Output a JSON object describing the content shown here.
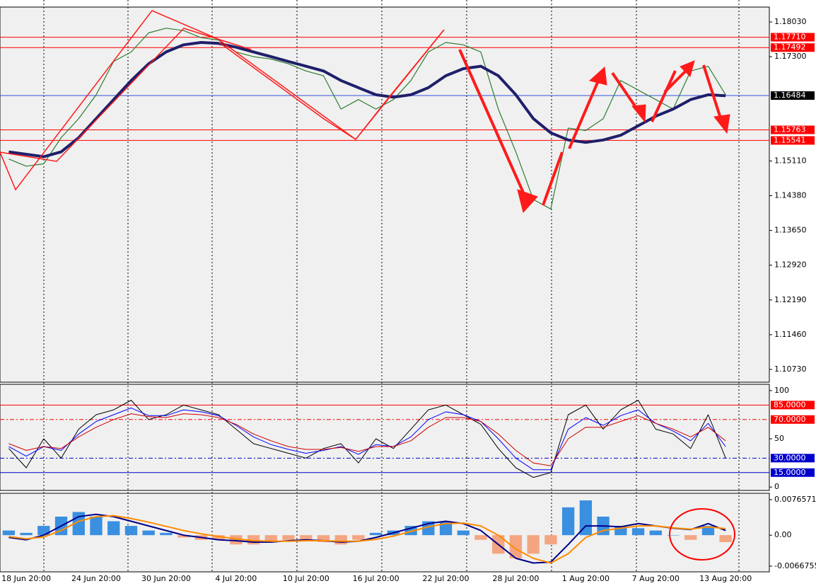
{
  "chart_data": [
    {
      "type": "line",
      "categories": [
        null,
        "18 Jun 20:00",
        null,
        null,
        null,
        "24 Jun 20:00",
        null,
        null,
        null,
        "30 Jun 20:00",
        null,
        null,
        null,
        "4 Jul 20:00",
        null,
        null,
        null,
        "10 Jul 20:00",
        null,
        null,
        null,
        "16 Jul 20:00",
        null,
        null,
        null,
        "22 Jul 20:00",
        null,
        null,
        null,
        "28 Jul 20:00",
        null,
        null,
        null,
        "1 Aug 20:00",
        null,
        null,
        null,
        "7 Aug 20:00",
        null,
        null,
        null,
        "13 Aug 20:00",
        null,
        null
      ],
      "ylim": [
        1.10462,
        1.18343
      ],
      "yticks": [
        {
          "value": 1.1803,
          "label": "1.18030"
        },
        {
          "value": 1.173,
          "label": "1.17300"
        },
        {
          "value": 1.1511,
          "label": "1.15110"
        },
        {
          "value": 1.1438,
          "label": "1.14380"
        },
        {
          "value": 1.1365,
          "label": "1.13650"
        },
        {
          "value": 1.1292,
          "label": "1.12920"
        },
        {
          "value": 1.1219,
          "label": "1.12190"
        },
        {
          "value": 1.1146,
          "label": "1.11460"
        },
        {
          "value": 1.1073,
          "label": "1.10730"
        }
      ],
      "levels": [
        {
          "value": 1.1771,
          "label": "1.17710",
          "color": "#ff0000",
          "dashed": false
        },
        {
          "value": 1.17492,
          "label": "1.17492",
          "color": "#ff0000",
          "dashed": false
        },
        {
          "value": 1.16484,
          "label": "1.16484",
          "color": "#3355dd",
          "dashed": false
        },
        {
          "value": 1.15763,
          "label": "1.15763",
          "color": "#ff0000",
          "dashed": false
        },
        {
          "value": 1.15541,
          "label": "1.15541",
          "color": "#ff0000",
          "dashed": false
        }
      ],
      "series": [
        {
          "color": "#2e7d32",
          "width": 1.2,
          "values": [
            1.1515,
            1.15,
            1.1505,
            1.156,
            1.16,
            1.165,
            1.172,
            1.174,
            1.178,
            1.179,
            1.1785,
            1.177,
            1.1765,
            1.174,
            1.173,
            1.1725,
            1.1715,
            1.17,
            1.169,
            1.162,
            1.164,
            1.162,
            1.164,
            1.168,
            1.174,
            1.176,
            1.1755,
            1.174,
            1.162,
            1.153,
            1.143,
            1.141,
            1.158,
            1.1575,
            1.16,
            1.168,
            1.166,
            1.164,
            1.162,
            1.17,
            1.171,
            1.165,
            null,
            null
          ]
        },
        {
          "color": "#1f1f6b",
          "width": 4,
          "values": [
            1.153,
            1.1525,
            1.152,
            1.153,
            1.156,
            1.16,
            1.164,
            1.168,
            1.1715,
            1.174,
            1.1755,
            1.176,
            1.1758,
            1.175,
            1.174,
            1.173,
            1.172,
            1.171,
            1.17,
            1.168,
            1.1665,
            1.165,
            1.1645,
            1.165,
            1.1665,
            1.169,
            1.1705,
            1.171,
            1.169,
            1.165,
            1.16,
            1.157,
            1.1555,
            1.155,
            1.1555,
            1.1565,
            1.1585,
            1.1605,
            1.162,
            1.164,
            1.165,
            1.1648,
            null,
            null
          ]
        }
      ]
    },
    {
      "type": "line",
      "ylim": [
        -3.5,
        106.5
      ],
      "yticks": [
        0,
        50,
        100
      ],
      "levels": [
        {
          "value": 85,
          "label": "85.0000",
          "color": "#ff0000",
          "dashed": false
        },
        {
          "value": 70,
          "label": "70.0000",
          "color": "#ff0000",
          "dashed": true
        },
        {
          "value": 30,
          "label": "30.0000",
          "color": "#0000cc",
          "dashed": true
        },
        {
          "value": 15,
          "label": "15.0000",
          "color": "#0000cc",
          "dashed": false
        }
      ],
      "series": [
        {
          "color": "#000000",
          "width": 1,
          "values": [
            40,
            20,
            50,
            30,
            60,
            75,
            80,
            90,
            70,
            75,
            85,
            80,
            75,
            60,
            45,
            40,
            35,
            30,
            40,
            45,
            25,
            50,
            40,
            60,
            80,
            85,
            75,
            65,
            40,
            20,
            10,
            15,
            75,
            85,
            60,
            80,
            90,
            60,
            55,
            40,
            75,
            30,
            null,
            null
          ]
        },
        {
          "color": "#0000ff",
          "width": 1,
          "values": [
            42,
            32,
            42,
            38,
            55,
            68,
            75,
            82,
            74,
            74,
            80,
            78,
            74,
            64,
            52,
            44,
            39,
            35,
            38,
            42,
            34,
            44,
            42,
            52,
            70,
            78,
            75,
            68,
            50,
            30,
            18,
            18,
            60,
            72,
            64,
            74,
            80,
            66,
            58,
            48,
            66,
            42,
            null,
            null
          ]
        },
        {
          "color": "#d00000",
          "width": 1,
          "values": [
            45,
            38,
            42,
            40,
            52,
            62,
            70,
            76,
            73,
            72,
            76,
            75,
            72,
            65,
            55,
            48,
            42,
            39,
            39,
            41,
            37,
            42,
            42,
            48,
            62,
            72,
            72,
            68,
            55,
            38,
            25,
            22,
            50,
            62,
            62,
            68,
            74,
            66,
            60,
            52,
            62,
            48,
            null,
            null
          ]
        }
      ]
    },
    {
      "type": "bar",
      "ylim": [
        -0.00791,
        0.00903
      ],
      "yticks": [
        {
          "value": 0.0076571,
          "label": "0.0076571"
        },
        {
          "value": 0,
          "label": "0.00"
        },
        {
          "value": -0.0066755,
          "label": "-0.0066755"
        }
      ],
      "levels": [],
      "series": [
        {
          "type": "bar",
          "color": "#3a8fe0",
          "negative_color": "#f4a582",
          "values": [
            0.001,
            0.0005,
            0.002,
            0.004,
            0.005,
            0.004,
            0.003,
            0.002,
            0.001,
            0.0005,
            -0.0005,
            -0.001,
            -0.001,
            -0.002,
            -0.002,
            -0.0015,
            -0.001,
            -0.001,
            -0.0015,
            -0.002,
            -0.001,
            0.0005,
            0.001,
            0.002,
            0.003,
            0.003,
            0.001,
            -0.001,
            -0.004,
            -0.005,
            -0.004,
            -0.002,
            0.006,
            0.0075,
            0.004,
            0.002,
            0.0015,
            0.001,
            0,
            -0.001,
            0.002,
            -0.0015,
            null,
            null
          ]
        },
        {
          "type": "line",
          "color": "#00008b",
          "width": 2,
          "values": [
            -0.0005,
            -0.001,
            0,
            0.002,
            0.004,
            0.0045,
            0.004,
            0.003,
            0.002,
            0.001,
            0,
            -0.0005,
            -0.001,
            -0.0012,
            -0.0015,
            -0.0015,
            -0.0012,
            -0.001,
            -0.0012,
            -0.0015,
            -0.0013,
            -0.0005,
            0.0005,
            0.0015,
            0.0025,
            0.003,
            0.0025,
            0.001,
            -0.002,
            -0.005,
            -0.006,
            -0.0058,
            -0.002,
            0.002,
            0.002,
            0.0018,
            0.0025,
            0.002,
            0.0015,
            0.0012,
            0.0025,
            0.001,
            null,
            null
          ]
        },
        {
          "type": "line",
          "color": "#ff8c00",
          "width": 2,
          "values": [
            -0.0003,
            -0.0008,
            -0.0004,
            0.001,
            0.003,
            0.004,
            0.0042,
            0.0036,
            0.0028,
            0.0019,
            0.001,
            0.0003,
            -0.0003,
            -0.0008,
            -0.0012,
            -0.0013,
            -0.0013,
            -0.0012,
            -0.0012,
            -0.0013,
            -0.0013,
            -0.0009,
            -0.0002,
            0.0008,
            0.0018,
            0.0025,
            0.0026,
            0.002,
            0,
            -0.003,
            -0.005,
            -0.006,
            -0.004,
            -0.0005,
            0.001,
            0.0015,
            0.002,
            0.002,
            0.0016,
            0.0013,
            0.0018,
            0.0014,
            null,
            null
          ]
        }
      ]
    }
  ]
}
